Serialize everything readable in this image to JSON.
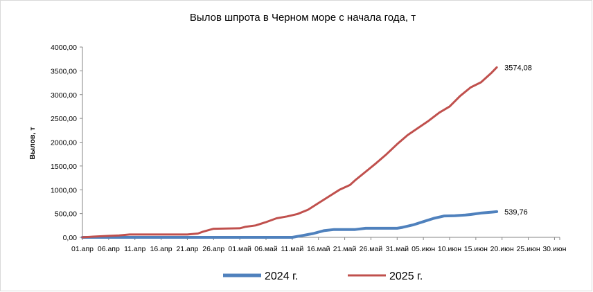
{
  "chart_data": {
    "type": "line",
    "title": "Вылов шпрота в Черном море с начала года, т",
    "xlabel": "",
    "ylabel": "Вылов, т",
    "ylim": [
      0,
      4000
    ],
    "grid": false,
    "legend_position": "bottom",
    "y_ticks": [
      "0,00",
      "500,00",
      "1000,00",
      "1500,00",
      "2000,00",
      "2500,00",
      "3000,00",
      "3500,00",
      "4000,00"
    ],
    "x_ticks": [
      "01.апр",
      "06.апр",
      "11.апр",
      "16.апр",
      "21.апр",
      "26.апр",
      "01.май",
      "06.май",
      "11.май",
      "16.май",
      "21.май",
      "26.май",
      "31.май",
      "05.июн",
      "10.июн",
      "15.июн",
      "20.июн",
      "25.июн",
      "30.июн"
    ],
    "series": [
      {
        "name": "2024 г.",
        "color": "#4f81bd",
        "end_label": "539,76",
        "points": [
          [
            "01.апр",
            0
          ],
          [
            "11.май",
            0
          ],
          [
            "13.май",
            40
          ],
          [
            "15.май",
            80
          ],
          [
            "17.май",
            140
          ],
          [
            "19.май",
            165
          ],
          [
            "23.май",
            165
          ],
          [
            "25.май",
            190
          ],
          [
            "31.май",
            190
          ],
          [
            "01.июн",
            210
          ],
          [
            "03.июн",
            260
          ],
          [
            "05.июн",
            330
          ],
          [
            "07.июн",
            400
          ],
          [
            "09.июн",
            450
          ],
          [
            "11.июн",
            455
          ],
          [
            "13.июн",
            470
          ],
          [
            "14.июн",
            480
          ],
          [
            "16.июн",
            510
          ],
          [
            "18.июн",
            530
          ],
          [
            "19.июн",
            539.76
          ]
        ]
      },
      {
        "name": "2025 г.",
        "color": "#c0504d",
        "end_label": "3574,08",
        "points": [
          [
            "01.апр",
            0
          ],
          [
            "03.апр",
            15
          ],
          [
            "06.апр",
            30
          ],
          [
            "08.апр",
            40
          ],
          [
            "10.апр",
            60
          ],
          [
            "21.апр",
            60
          ],
          [
            "23.апр",
            80
          ],
          [
            "24.апр",
            120
          ],
          [
            "26.апр",
            180
          ],
          [
            "01.май",
            190
          ],
          [
            "02.май",
            220
          ],
          [
            "04.май",
            250
          ],
          [
            "06.май",
            320
          ],
          [
            "08.май",
            400
          ],
          [
            "10.май",
            440
          ],
          [
            "12.май",
            490
          ],
          [
            "14.май",
            580
          ],
          [
            "16.май",
            720
          ],
          [
            "18.май",
            860
          ],
          [
            "20.май",
            1000
          ],
          [
            "22.май",
            1100
          ],
          [
            "23.май",
            1200
          ],
          [
            "25.май",
            1380
          ],
          [
            "27.май",
            1560
          ],
          [
            "29.май",
            1750
          ],
          [
            "31.май",
            1960
          ],
          [
            "02.июн",
            2150
          ],
          [
            "04.июн",
            2300
          ],
          [
            "06.июн",
            2450
          ],
          [
            "08.июн",
            2620
          ],
          [
            "10.июн",
            2750
          ],
          [
            "12.июн",
            2970
          ],
          [
            "14.июн",
            3150
          ],
          [
            "16.июн",
            3260
          ],
          [
            "18.июн",
            3460
          ],
          [
            "19.июн",
            3574.08
          ]
        ]
      }
    ]
  }
}
